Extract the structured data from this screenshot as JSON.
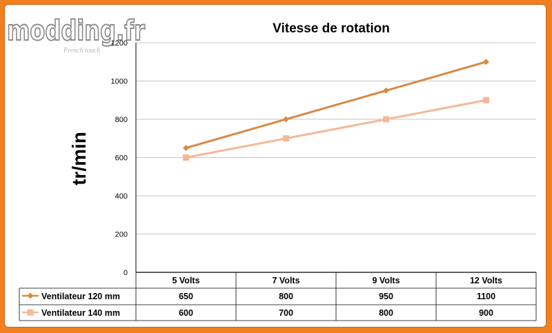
{
  "watermark": {
    "logo_text": "modding.fr",
    "tagline": "French touch"
  },
  "chart_data": {
    "type": "line",
    "title": "Vitesse de rotation",
    "ylabel": "tr/min",
    "xlabel": "",
    "categories": [
      "5 Volts",
      "7 Volts",
      "9 Volts",
      "12 Volts"
    ],
    "ylim": [
      0,
      1200
    ],
    "y_ticks": [
      0,
      200,
      400,
      600,
      800,
      1000,
      1200
    ],
    "y_tick_labels": [
      "0",
      "200",
      "400",
      "600",
      "800",
      "1000",
      "1200"
    ],
    "grid": "horizontal",
    "legend": "data-table",
    "series": [
      {
        "name": "Ventilateur 120 mm",
        "values": [
          650,
          800,
          950,
          1100
        ],
        "value_labels": [
          "650",
          "800",
          "950",
          "1100"
        ],
        "color": "#d88a45",
        "marker": "diamond"
      },
      {
        "name": "Ventilateur 140 mm",
        "values": [
          600,
          700,
          800,
          900
        ],
        "value_labels": [
          "600",
          "700",
          "800",
          "900"
        ],
        "color": "#f4b897",
        "marker": "square"
      }
    ]
  }
}
